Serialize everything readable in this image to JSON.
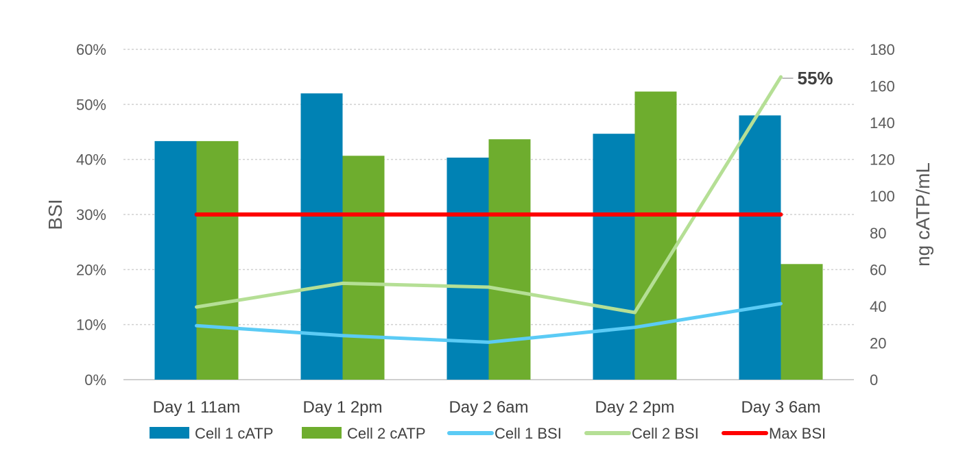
{
  "chart_data": {
    "type": "bar",
    "categories": [
      "Day 1 11am",
      "Day 1 2pm",
      "Day 2 6am",
      "Day 2 2pm",
      "Day 3 6am"
    ],
    "left_axis": {
      "label": "BSI",
      "ylim": [
        0,
        0.6
      ],
      "ticks": [
        0,
        0.1,
        0.2,
        0.3,
        0.4,
        0.5,
        0.6
      ],
      "tick_labels": [
        "0%",
        "10%",
        "20%",
        "30%",
        "40%",
        "50%",
        "60%"
      ]
    },
    "right_axis": {
      "label": "ng cATP/mL",
      "ylim": [
        0,
        180
      ],
      "ticks": [
        0,
        20,
        40,
        60,
        80,
        100,
        120,
        140,
        160,
        180
      ],
      "tick_labels": [
        "0",
        "20",
        "40",
        "60",
        "80",
        "100",
        "120",
        "140",
        "160",
        "180"
      ]
    },
    "series": [
      {
        "name": "Cell 1 cATP",
        "kind": "bar",
        "axis": "right",
        "color": "#0082B4",
        "values": [
          130,
          156,
          121,
          134,
          144
        ]
      },
      {
        "name": "Cell 2 cATP",
        "kind": "bar",
        "axis": "right",
        "color": "#6EAD2E",
        "values": [
          130,
          122,
          131,
          157,
          63
        ]
      },
      {
        "name": "Cell 1 BSI",
        "kind": "line",
        "axis": "left",
        "color": "#5BCBF5",
        "values": [
          0.098,
          0.08,
          0.068,
          0.095,
          0.138
        ]
      },
      {
        "name": "Cell 2 BSI",
        "kind": "line",
        "axis": "left",
        "color": "#B5DF95",
        "values": [
          0.132,
          0.175,
          0.168,
          0.122,
          0.55
        ]
      },
      {
        "name": "Max BSI",
        "kind": "line",
        "axis": "left",
        "color": "#FF0000",
        "values": [
          0.3,
          0.3,
          0.3,
          0.3,
          0.3
        ]
      }
    ],
    "annotations": [
      {
        "text": "55%",
        "series": "Cell 2 BSI",
        "index": 4
      }
    ],
    "grid": "horizontal dotted",
    "legend_position": "bottom"
  }
}
